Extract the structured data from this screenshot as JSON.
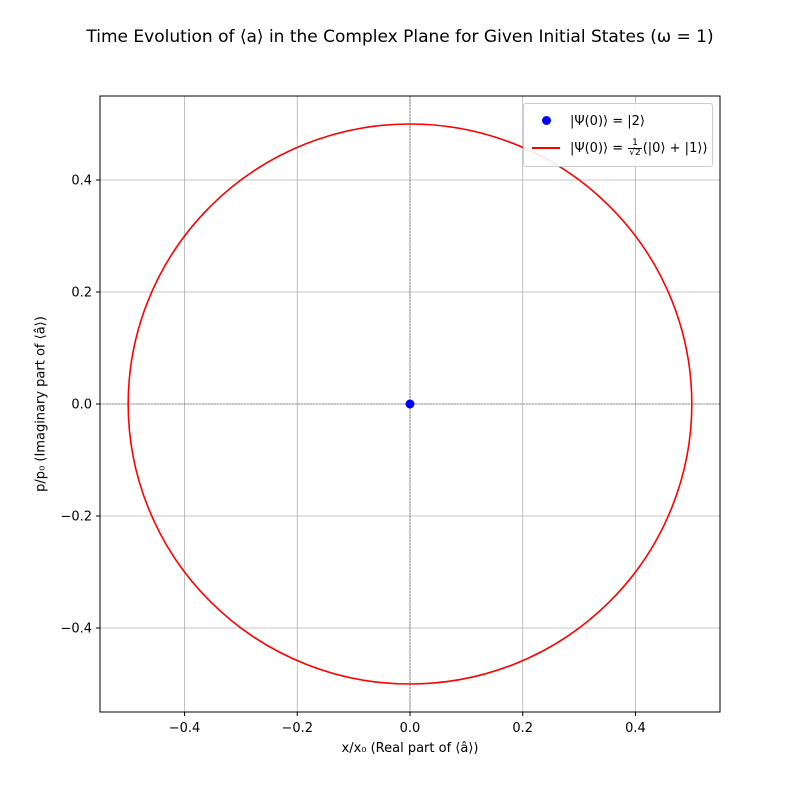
{
  "chart_data": {
    "type": "scatter",
    "title": "Time Evolution of ⟨a⟩ in the Complex Plane for Given Initial States (ω = 1)",
    "xlabel": "x/x₀ (Real part of ⟨â⟩)",
    "ylabel": "p/p₀ (Imaginary part of ⟨â⟩)",
    "xlim": [
      -0.55,
      0.55
    ],
    "ylim": [
      -0.55,
      0.55
    ],
    "xticks": [
      -0.4,
      -0.2,
      0.0,
      0.2,
      0.4
    ],
    "yticks": [
      -0.4,
      -0.2,
      0.0,
      0.2,
      0.4
    ],
    "xtick_labels": [
      "−0.4",
      "−0.2",
      "0.0",
      "0.2",
      "0.4"
    ],
    "ytick_labels": [
      "−0.4",
      "−0.2",
      "0.0",
      "0.2",
      "0.4"
    ],
    "grid": true,
    "legend_position": "top-right",
    "series": [
      {
        "name": "|Ψ(0)⟩ = |2⟩",
        "kind": "points",
        "color": "#0000ff",
        "points": [
          [
            0.0,
            0.0
          ]
        ]
      },
      {
        "name": "|Ψ(0)⟩ = 1/√2 (|0⟩ + |1⟩)",
        "kind": "circle",
        "color": "#ff0000",
        "center": [
          0.0,
          0.0
        ],
        "radius": 0.5
      }
    ],
    "legend": {
      "entry1": "|Ψ(0)⟩ = |2⟩",
      "entry2_prefix": "|Ψ(0)⟩ = ",
      "entry2_num": "1",
      "entry2_den": "√2",
      "entry2_suffix": "(|0⟩ + |1⟩)"
    }
  }
}
